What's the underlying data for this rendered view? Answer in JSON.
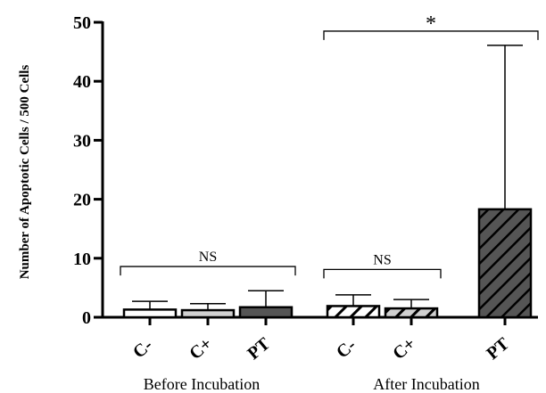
{
  "chart_data": {
    "type": "bar",
    "ylabel": "Number of Apoptotic Cells / 500 Cells",
    "ylim": [
      0,
      50
    ],
    "yticks": [
      0,
      10,
      20,
      30,
      40,
      50
    ],
    "groups": [
      "Before Incubation",
      "After Incubation"
    ],
    "bars": [
      {
        "group": "Before Incubation",
        "category": "C-",
        "value": 1.3,
        "error": 1.4,
        "fill": "white"
      },
      {
        "group": "Before Incubation",
        "category": "C+",
        "value": 1.2,
        "error": 1.1,
        "fill": "light-gray"
      },
      {
        "group": "Before Incubation",
        "category": "PT",
        "value": 1.7,
        "error": 2.8,
        "fill": "dark-gray"
      },
      {
        "group": "After Incubation",
        "category": "C-",
        "value": 1.9,
        "error": 1.9,
        "fill": "white-hatched"
      },
      {
        "group": "After Incubation",
        "category": "C+",
        "value": 1.5,
        "error": 1.5,
        "fill": "light-gray-hatched"
      },
      {
        "group": "After Incubation",
        "category": "PT",
        "value": 18.3,
        "error": 27.8,
        "fill": "dark-gray-hatched"
      }
    ],
    "annotations": [
      {
        "text": "NS",
        "spans": [
          "Before Incubation C-",
          "Before Incubation PT"
        ],
        "bracket_y": 8.6
      },
      {
        "text": "NS",
        "spans": [
          "After Incubation C-",
          "After Incubation C+"
        ],
        "bracket_y": 8.1
      },
      {
        "text": "*",
        "spans": [
          "After Incubation C-",
          "After Incubation PT"
        ],
        "bracket_y": 48.5
      }
    ],
    "colors": {
      "white": "#ffffff",
      "light-gray": "#d0d0d0",
      "dark-gray": "#555555",
      "hatch": "#000000"
    }
  }
}
